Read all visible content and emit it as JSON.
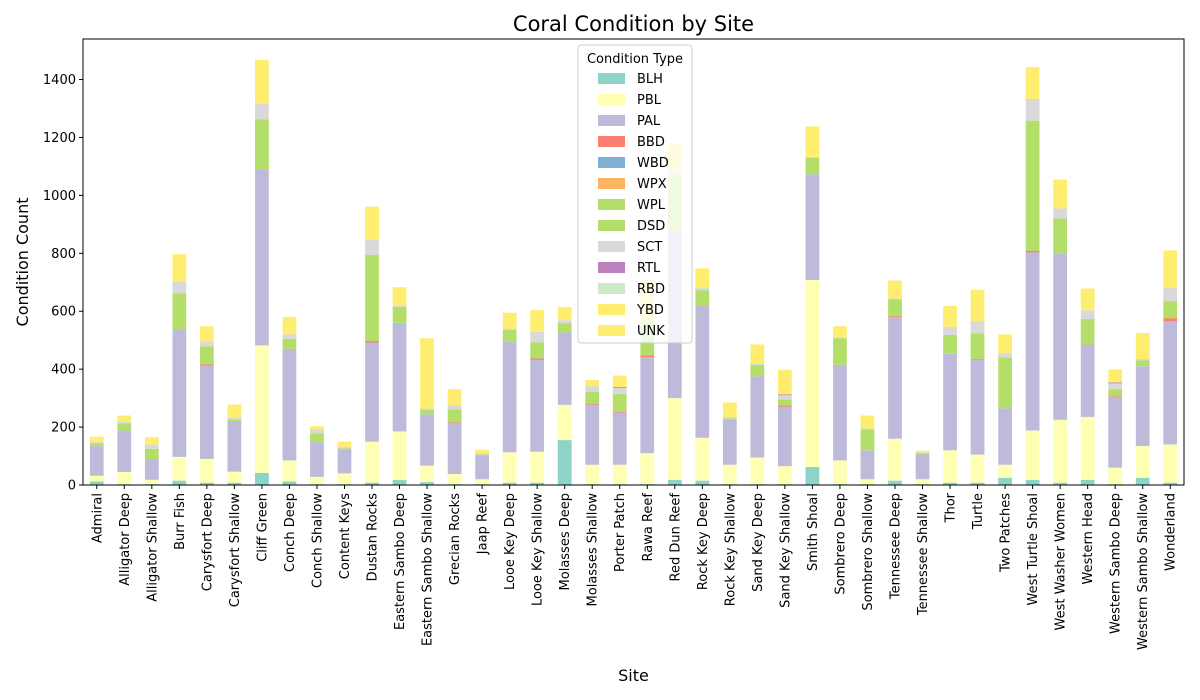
{
  "chart_data": {
    "type": "bar",
    "stacked": true,
    "title": "Coral Condition by Site",
    "xlabel": "Site",
    "ylabel": "Condition Count",
    "ylim": [
      0,
      1540
    ],
    "yticks": [
      0,
      200,
      400,
      600,
      800,
      1000,
      1200,
      1400
    ],
    "grid": false,
    "legend": {
      "title": "Condition Type",
      "placement": "top-center"
    },
    "categories": [
      "Admiral",
      "Alligator Deep",
      "Alligator Shallow",
      "Burr Fish",
      "Carysfort Deep",
      "Carysfort Shallow",
      "Cliff Green",
      "Conch Deep",
      "Conch Shallow",
      "Content Keys",
      "Dustan Rocks",
      "Eastern Sambo Deep",
      "Eastern Sambo Shallow",
      "Grecian Rocks",
      "Jaap Reef",
      "Looe Key Deep",
      "Looe Key Shallow",
      "Molasses Deep",
      "Molasses Shallow",
      "Porter Patch",
      "Rawa Reef",
      "Red Dun Reef",
      "Rock Key Deep",
      "Rock Key Shallow",
      "Sand Key Deep",
      "Sand Key Shallow",
      "Smith Shoal",
      "Sombrero Deep",
      "Sombrero Shallow",
      "Tennessee Deep",
      "Tennessee Shallow",
      "Thor",
      "Turtle",
      "Two Patches",
      "West Turtle Shoal",
      "West Washer Women",
      "Western Head",
      "Western Sambo Deep",
      "Western Sambo Shallow",
      "Wonderland"
    ],
    "series": [
      {
        "name": "BLH",
        "color": "#8dd3c7",
        "values": [
          12,
          3,
          3,
          15,
          8,
          8,
          42,
          12,
          3,
          3,
          8,
          18,
          10,
          3,
          3,
          8,
          8,
          155,
          3,
          3,
          3,
          18,
          15,
          3,
          3,
          3,
          62,
          3,
          3,
          15,
          3,
          8,
          8,
          25,
          18,
          8,
          18,
          3,
          25,
          8
        ]
      },
      {
        "name": "PBL",
        "color": "#ffffb3",
        "values": [
          20,
          42,
          15,
          82,
          82,
          38,
          440,
          73,
          25,
          37,
          142,
          167,
          57,
          35,
          17,
          105,
          107,
          122,
          67,
          67,
          107,
          282,
          148,
          67,
          92,
          62,
          646,
          82,
          17,
          145,
          17,
          112,
          97,
          45,
          170,
          217,
          217,
          57,
          110,
          132
        ]
      },
      {
        "name": "PAL",
        "color": "#bebada",
        "values": [
          102,
          143,
          72,
          440,
          322,
          175,
          608,
          385,
          120,
          82,
          342,
          375,
          177,
          175,
          80,
          382,
          317,
          250,
          208,
          180,
          332,
          575,
          455,
          155,
          280,
          205,
          365,
          330,
          100,
          420,
          85,
          333,
          328,
          195,
          615,
          575,
          250,
          243,
          275,
          425
        ]
      },
      {
        "name": "BBD",
        "color": "#fb8072",
        "values": [
          0,
          0,
          0,
          0,
          5,
          0,
          0,
          0,
          0,
          0,
          5,
          0,
          0,
          3,
          0,
          0,
          5,
          0,
          3,
          3,
          5,
          0,
          0,
          0,
          0,
          5,
          0,
          0,
          0,
          3,
          0,
          0,
          3,
          0,
          5,
          0,
          0,
          3,
          0,
          10
        ]
      },
      {
        "name": "WBD",
        "color": "#80b1d3",
        "values": [
          0,
          0,
          0,
          0,
          0,
          0,
          0,
          0,
          0,
          0,
          0,
          0,
          0,
          0,
          0,
          0,
          0,
          0,
          0,
          0,
          0,
          0,
          0,
          0,
          0,
          0,
          0,
          0,
          0,
          0,
          0,
          0,
          0,
          0,
          0,
          0,
          0,
          0,
          0,
          0
        ]
      },
      {
        "name": "WPX",
        "color": "#fdb462",
        "values": [
          0,
          0,
          0,
          0,
          0,
          0,
          0,
          0,
          0,
          0,
          0,
          0,
          0,
          0,
          0,
          0,
          0,
          0,
          0,
          0,
          0,
          0,
          0,
          0,
          0,
          0,
          0,
          0,
          0,
          0,
          0,
          0,
          0,
          0,
          0,
          0,
          0,
          0,
          0,
          5
        ]
      },
      {
        "name": "WPL",
        "color": "#b3de69",
        "values": [
          10,
          25,
          35,
          125,
          62,
          5,
          173,
          35,
          30,
          5,
          297,
          55,
          15,
          45,
          5,
          40,
          55,
          32,
          40,
          62,
          123,
          195,
          55,
          5,
          40,
          20,
          57,
          92,
          72,
          58,
          5,
          65,
          88,
          175,
          450,
          120,
          88,
          25,
          20,
          55
        ]
      },
      {
        "name": "DSD",
        "color": "#b3de69",
        "values": [
          0,
          0,
          0,
          0,
          0,
          0,
          0,
          0,
          0,
          0,
          0,
          0,
          0,
          0,
          0,
          0,
          0,
          0,
          0,
          0,
          0,
          0,
          0,
          0,
          0,
          0,
          0,
          0,
          0,
          0,
          0,
          0,
          0,
          0,
          0,
          0,
          0,
          0,
          0,
          0
        ]
      },
      {
        "name": "SCT",
        "color": "#d9d9d9",
        "values": [
          5,
          5,
          15,
          40,
          17,
          7,
          55,
          15,
          15,
          5,
          52,
          5,
          5,
          15,
          5,
          5,
          37,
          10,
          20,
          20,
          3,
          15,
          10,
          5,
          5,
          15,
          3,
          3,
          3,
          3,
          3,
          28,
          42,
          15,
          75,
          35,
          30,
          20,
          5,
          45
        ]
      },
      {
        "name": "RTL",
        "color": "#bc80bd",
        "values": [
          0,
          0,
          0,
          0,
          0,
          0,
          0,
          0,
          0,
          0,
          0,
          0,
          0,
          0,
          0,
          0,
          0,
          0,
          0,
          3,
          0,
          0,
          0,
          0,
          0,
          3,
          0,
          0,
          0,
          0,
          0,
          0,
          0,
          0,
          0,
          0,
          0,
          3,
          0,
          0
        ]
      },
      {
        "name": "RBD",
        "color": "#ccebc5",
        "values": [
          0,
          0,
          0,
          0,
          0,
          0,
          0,
          0,
          0,
          0,
          0,
          0,
          0,
          0,
          0,
          0,
          0,
          0,
          0,
          0,
          0,
          5,
          0,
          0,
          0,
          0,
          0,
          0,
          0,
          0,
          0,
          0,
          0,
          0,
          0,
          0,
          0,
          0,
          0,
          0
        ]
      },
      {
        "name": "YBD",
        "color": "#ffed6f",
        "values": [
          18,
          22,
          25,
          95,
          52,
          45,
          150,
          60,
          10,
          18,
          115,
          63,
          243,
          55,
          12,
          55,
          75,
          45,
          22,
          40,
          135,
          90,
          65,
          50,
          65,
          85,
          105,
          38,
          45,
          62,
          5,
          72,
          108,
          65,
          110,
          100,
          75,
          45,
          90,
          130
        ]
      },
      {
        "name": "UNK",
        "color": "#ffed6f",
        "values": [
          0,
          0,
          0,
          0,
          0,
          0,
          0,
          0,
          0,
          0,
          0,
          0,
          0,
          0,
          0,
          0,
          0,
          0,
          0,
          0,
          0,
          0,
          0,
          0,
          0,
          0,
          0,
          0,
          0,
          0,
          0,
          0,
          0,
          0,
          0,
          0,
          0,
          0,
          0,
          0
        ]
      }
    ]
  }
}
